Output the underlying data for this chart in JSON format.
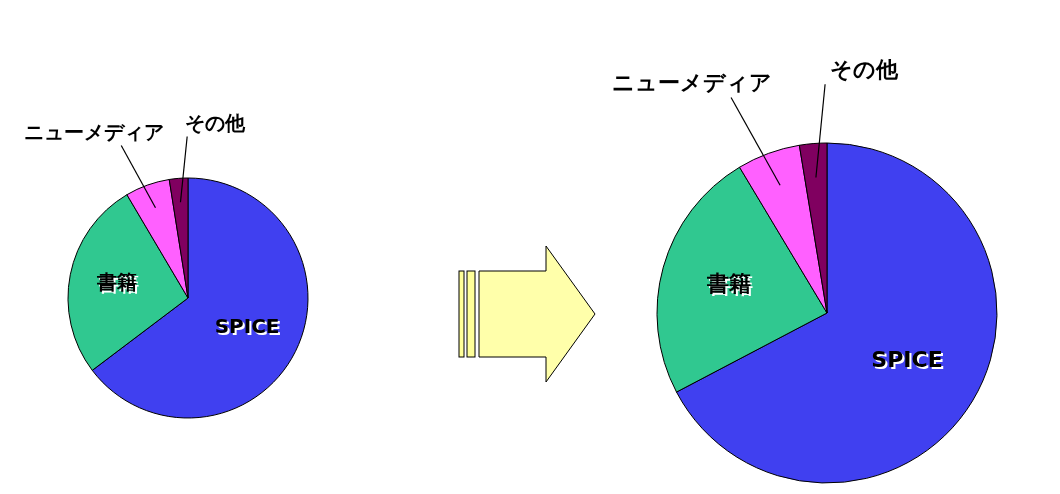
{
  "chart_data": [
    {
      "type": "pie",
      "categories": [
        "SPICE",
        "書籍",
        "ニューメディア",
        "その他"
      ],
      "values": [
        64.7,
        26.8,
        6,
        2.5
      ],
      "colors": [
        "#4040f0",
        "#30c890",
        "#ff60ff",
        "#800060"
      ],
      "legend": false
    },
    {
      "type": "pie",
      "categories": [
        "SPICE",
        "書籍",
        "ニューメディア",
        "その他"
      ],
      "values": [
        67.3,
        24.1,
        6,
        2.6
      ],
      "colors": [
        "#4040f0",
        "#30c890",
        "#ff60ff",
        "#800060"
      ],
      "legend": false
    }
  ]
}
